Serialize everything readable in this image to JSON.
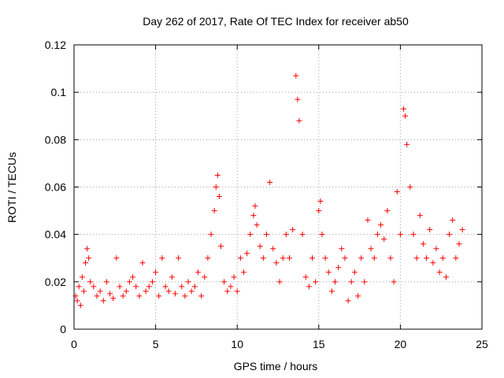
{
  "chart_data": {
    "type": "scatter",
    "title": "Day 262 of 2017, Rate Of TEC Index for receiver ab50",
    "xlabel": "GPS time / hours",
    "ylabel": "ROTI / TECUs",
    "xlim": [
      0,
      25
    ],
    "ylim": [
      0,
      0.12
    ],
    "xticks": [
      0,
      5,
      10,
      15,
      20,
      25
    ],
    "xtick_labels": [
      "0",
      "5",
      "10",
      "15",
      "20",
      "25"
    ],
    "yticks": [
      0,
      0.02,
      0.04,
      0.06,
      0.08,
      0.1,
      0.12
    ],
    "ytick_labels": [
      "0",
      "0.02",
      "0.04",
      "0.06",
      "0.08",
      "0.1",
      "0.12"
    ],
    "grid": true,
    "legend": "none",
    "marker": "+",
    "color": "#ff0000",
    "series": [
      {
        "x": [
          0.1,
          0.2,
          0.3,
          0.4,
          0.5,
          0.6,
          0.7,
          0.8,
          0.9,
          1.0,
          1.2,
          1.4,
          1.6,
          1.8,
          2.0,
          2.2,
          2.4,
          2.6,
          2.8,
          3.0,
          3.2,
          3.4,
          3.6,
          3.8,
          4.0,
          4.2,
          4.4,
          4.6,
          4.8,
          5.0,
          5.2,
          5.4,
          5.6,
          5.8,
          6.0,
          6.2,
          6.4,
          6.6,
          6.8,
          7.0,
          7.2,
          7.4,
          7.6,
          7.8,
          8.0,
          8.2,
          8.4,
          8.6,
          8.7,
          8.8,
          8.9,
          9.0,
          9.2,
          9.4,
          9.6,
          9.8,
          10.0,
          10.2,
          10.4,
          10.6,
          10.8,
          11.0,
          11.1,
          11.2,
          11.4,
          11.6,
          11.8,
          12.0,
          12.2,
          12.4,
          12.6,
          12.8,
          13.0,
          13.2,
          13.4,
          13.6,
          13.7,
          13.8,
          14.0,
          14.2,
          14.4,
          14.6,
          14.8,
          15.0,
          15.1,
          15.2,
          15.4,
          15.6,
          15.8,
          16.0,
          16.2,
          16.4,
          16.6,
          16.8,
          17.0,
          17.2,
          17.4,
          17.6,
          17.8,
          18.0,
          18.2,
          18.4,
          18.6,
          18.8,
          19.0,
          19.2,
          19.4,
          19.6,
          19.8,
          20.0,
          20.2,
          20.3,
          20.4,
          20.6,
          20.8,
          21.0,
          21.2,
          21.4,
          21.6,
          21.8,
          22.0,
          22.2,
          22.4,
          22.6,
          22.8,
          23.0,
          23.2,
          23.4,
          23.6,
          23.8
        ],
        "y": [
          0.014,
          0.012,
          0.018,
          0.01,
          0.022,
          0.016,
          0.028,
          0.034,
          0.03,
          0.02,
          0.018,
          0.014,
          0.016,
          0.012,
          0.02,
          0.015,
          0.013,
          0.03,
          0.018,
          0.014,
          0.016,
          0.02,
          0.022,
          0.018,
          0.014,
          0.028,
          0.016,
          0.018,
          0.02,
          0.024,
          0.014,
          0.03,
          0.018,
          0.016,
          0.022,
          0.015,
          0.03,
          0.018,
          0.014,
          0.02,
          0.016,
          0.018,
          0.024,
          0.014,
          0.022,
          0.03,
          0.04,
          0.05,
          0.06,
          0.065,
          0.056,
          0.035,
          0.02,
          0.016,
          0.018,
          0.022,
          0.016,
          0.03,
          0.024,
          0.032,
          0.04,
          0.048,
          0.052,
          0.044,
          0.035,
          0.03,
          0.04,
          0.062,
          0.034,
          0.028,
          0.02,
          0.03,
          0.04,
          0.03,
          0.042,
          0.107,
          0.097,
          0.088,
          0.04,
          0.022,
          0.018,
          0.03,
          0.02,
          0.05,
          0.054,
          0.04,
          0.03,
          0.024,
          0.016,
          0.02,
          0.026,
          0.034,
          0.03,
          0.012,
          0.02,
          0.024,
          0.014,
          0.03,
          0.02,
          0.046,
          0.034,
          0.03,
          0.04,
          0.044,
          0.038,
          0.05,
          0.03,
          0.02,
          0.058,
          0.04,
          0.093,
          0.09,
          0.078,
          0.06,
          0.04,
          0.03,
          0.048,
          0.036,
          0.03,
          0.042,
          0.028,
          0.034,
          0.024,
          0.03,
          0.022,
          0.04,
          0.046,
          0.03,
          0.036,
          0.042
        ]
      }
    ]
  }
}
